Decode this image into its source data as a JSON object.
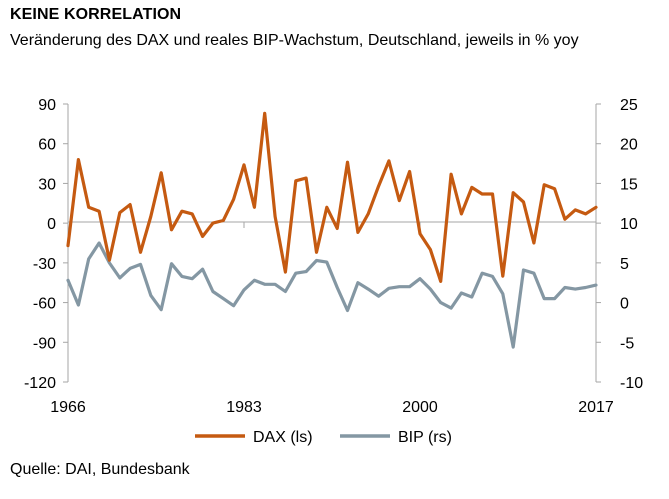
{
  "header": {
    "title": "KEINE KORRELATION",
    "subtitle": "Veränderung des DAX und reales BIP-Wachstum, Deutschland, jeweils in % yoy"
  },
  "footer": {
    "source": "Quelle: DAI, Bundesbank"
  },
  "colors": {
    "dax": "#C55A11",
    "bip": "#8497A3",
    "axis": "#A6A6A6"
  },
  "chart_data": {
    "type": "line",
    "title": "KEINE KORRELATION",
    "subtitle": "Veränderung des DAX und reales BIP-Wachstum, Deutschland, jeweils in % yoy",
    "x_range": [
      1966,
      2017
    ],
    "x_ticks": [
      "1966",
      "1983",
      "2000",
      "2017"
    ],
    "y_left": {
      "range": [
        -120,
        90
      ],
      "ticks": [
        "90",
        "60",
        "30",
        "0",
        "-30",
        "-60",
        "-90",
        "-120"
      ]
    },
    "y_right": {
      "range": [
        -10,
        25
      ],
      "ticks": [
        "25",
        "20",
        "15",
        "10",
        "5",
        "0",
        "-5",
        "-10"
      ]
    },
    "grid": false,
    "legend_position": "bottom",
    "series": [
      {
        "name": "DAX (ls)",
        "axis": "left",
        "color": "#C55A11",
        "x": [
          1966,
          1967,
          1968,
          1969,
          1970,
          1971,
          1972,
          1973,
          1974,
          1975,
          1976,
          1977,
          1978,
          1979,
          1980,
          1981,
          1982,
          1983,
          1984,
          1985,
          1986,
          1987,
          1988,
          1989,
          1990,
          1991,
          1992,
          1993,
          1994,
          1995,
          1996,
          1997,
          1998,
          1999,
          2000,
          2001,
          2002,
          2003,
          2004,
          2005,
          2006,
          2007,
          2008,
          2009,
          2010,
          2011,
          2012,
          2013,
          2014,
          2015,
          2016,
          2017
        ],
        "values": [
          -17,
          48,
          12,
          9,
          -28,
          8,
          14,
          -22,
          5,
          38,
          -5,
          9,
          7,
          -10,
          0,
          2,
          18,
          44,
          12,
          83,
          5,
          -37,
          32,
          34,
          -22,
          12,
          -4,
          46,
          -7,
          7,
          28,
          47,
          17,
          39,
          -8,
          -20,
          -44,
          37,
          7,
          27,
          22,
          22,
          -40,
          23,
          16,
          -15,
          29,
          26,
          3,
          10,
          7,
          12
        ]
      },
      {
        "name": "BIP (rs)",
        "axis": "right",
        "color": "#8497A3",
        "x": [
          1966,
          1967,
          1968,
          1969,
          1970,
          1971,
          1972,
          1973,
          1974,
          1975,
          1976,
          1977,
          1978,
          1979,
          1980,
          1981,
          1982,
          1983,
          1984,
          1985,
          1986,
          1987,
          1988,
          1989,
          1990,
          1991,
          1992,
          1993,
          1994,
          1995,
          1996,
          1997,
          1998,
          1999,
          2000,
          2001,
          2002,
          2003,
          2004,
          2005,
          2006,
          2007,
          2008,
          2009,
          2010,
          2011,
          2012,
          2013,
          2014,
          2015,
          2016,
          2017
        ],
        "values": [
          2.8,
          -0.3,
          5.5,
          7.5,
          5.0,
          3.1,
          4.3,
          4.8,
          0.9,
          -0.9,
          4.9,
          3.3,
          3.0,
          4.2,
          1.4,
          0.5,
          -0.4,
          1.6,
          2.8,
          2.3,
          2.3,
          1.4,
          3.7,
          3.9,
          5.3,
          5.1,
          1.9,
          -1.0,
          2.5,
          1.7,
          0.8,
          1.8,
          2.0,
          2.0,
          3.0,
          1.7,
          0.0,
          -0.7,
          1.2,
          0.7,
          3.7,
          3.3,
          1.1,
          -5.6,
          4.1,
          3.7,
          0.5,
          0.5,
          1.9,
          1.7,
          1.9,
          2.2
        ]
      }
    ]
  }
}
